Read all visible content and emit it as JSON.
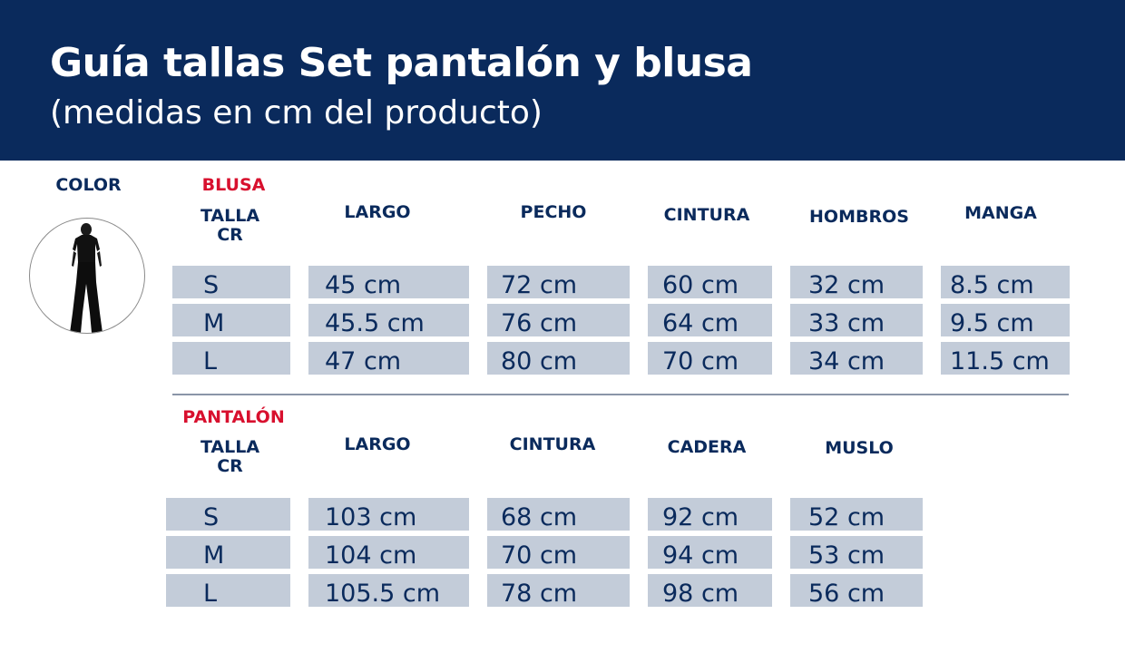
{
  "header": {
    "title": "Guía tallas Set pantalón y blusa",
    "subtitle": "(medidas en cm del producto)"
  },
  "color_label": "COLOR",
  "colors": {
    "navy": "#0a2a5c",
    "red": "#d8102e",
    "cell": "#c3ccd9"
  },
  "blusa": {
    "section": "BLUSA",
    "talla_line1": "TALLA",
    "talla_line2": "CR",
    "headers": [
      "LARGO",
      "PECHO",
      "CINTURA",
      "HOMBROS",
      "MANGA"
    ],
    "rows": [
      {
        "size": "S",
        "values": [
          "45 cm",
          "72 cm",
          "60 cm",
          "32 cm",
          "8.5 cm"
        ]
      },
      {
        "size": "M",
        "values": [
          "45.5 cm",
          "76 cm",
          "64 cm",
          "33 cm",
          "9.5 cm"
        ]
      },
      {
        "size": "L",
        "values": [
          "47 cm",
          "80 cm",
          "70 cm",
          "34 cm",
          "11.5 cm"
        ]
      }
    ]
  },
  "pantalon": {
    "section": "PANTALÓN",
    "talla_line1": "TALLA",
    "talla_line2": "CR",
    "headers": [
      "LARGO",
      "CINTURA",
      "CADERA",
      "MUSLO"
    ],
    "rows": [
      {
        "size": "S",
        "values": [
          "103 cm",
          "68 cm",
          "92 cm",
          "52 cm"
        ]
      },
      {
        "size": "M",
        "values": [
          "104 cm",
          "70 cm",
          "94 cm",
          "53 cm"
        ]
      },
      {
        "size": "L",
        "values": [
          "105.5 cm",
          "78 cm",
          "98 cm",
          "56 cm"
        ]
      }
    ]
  }
}
